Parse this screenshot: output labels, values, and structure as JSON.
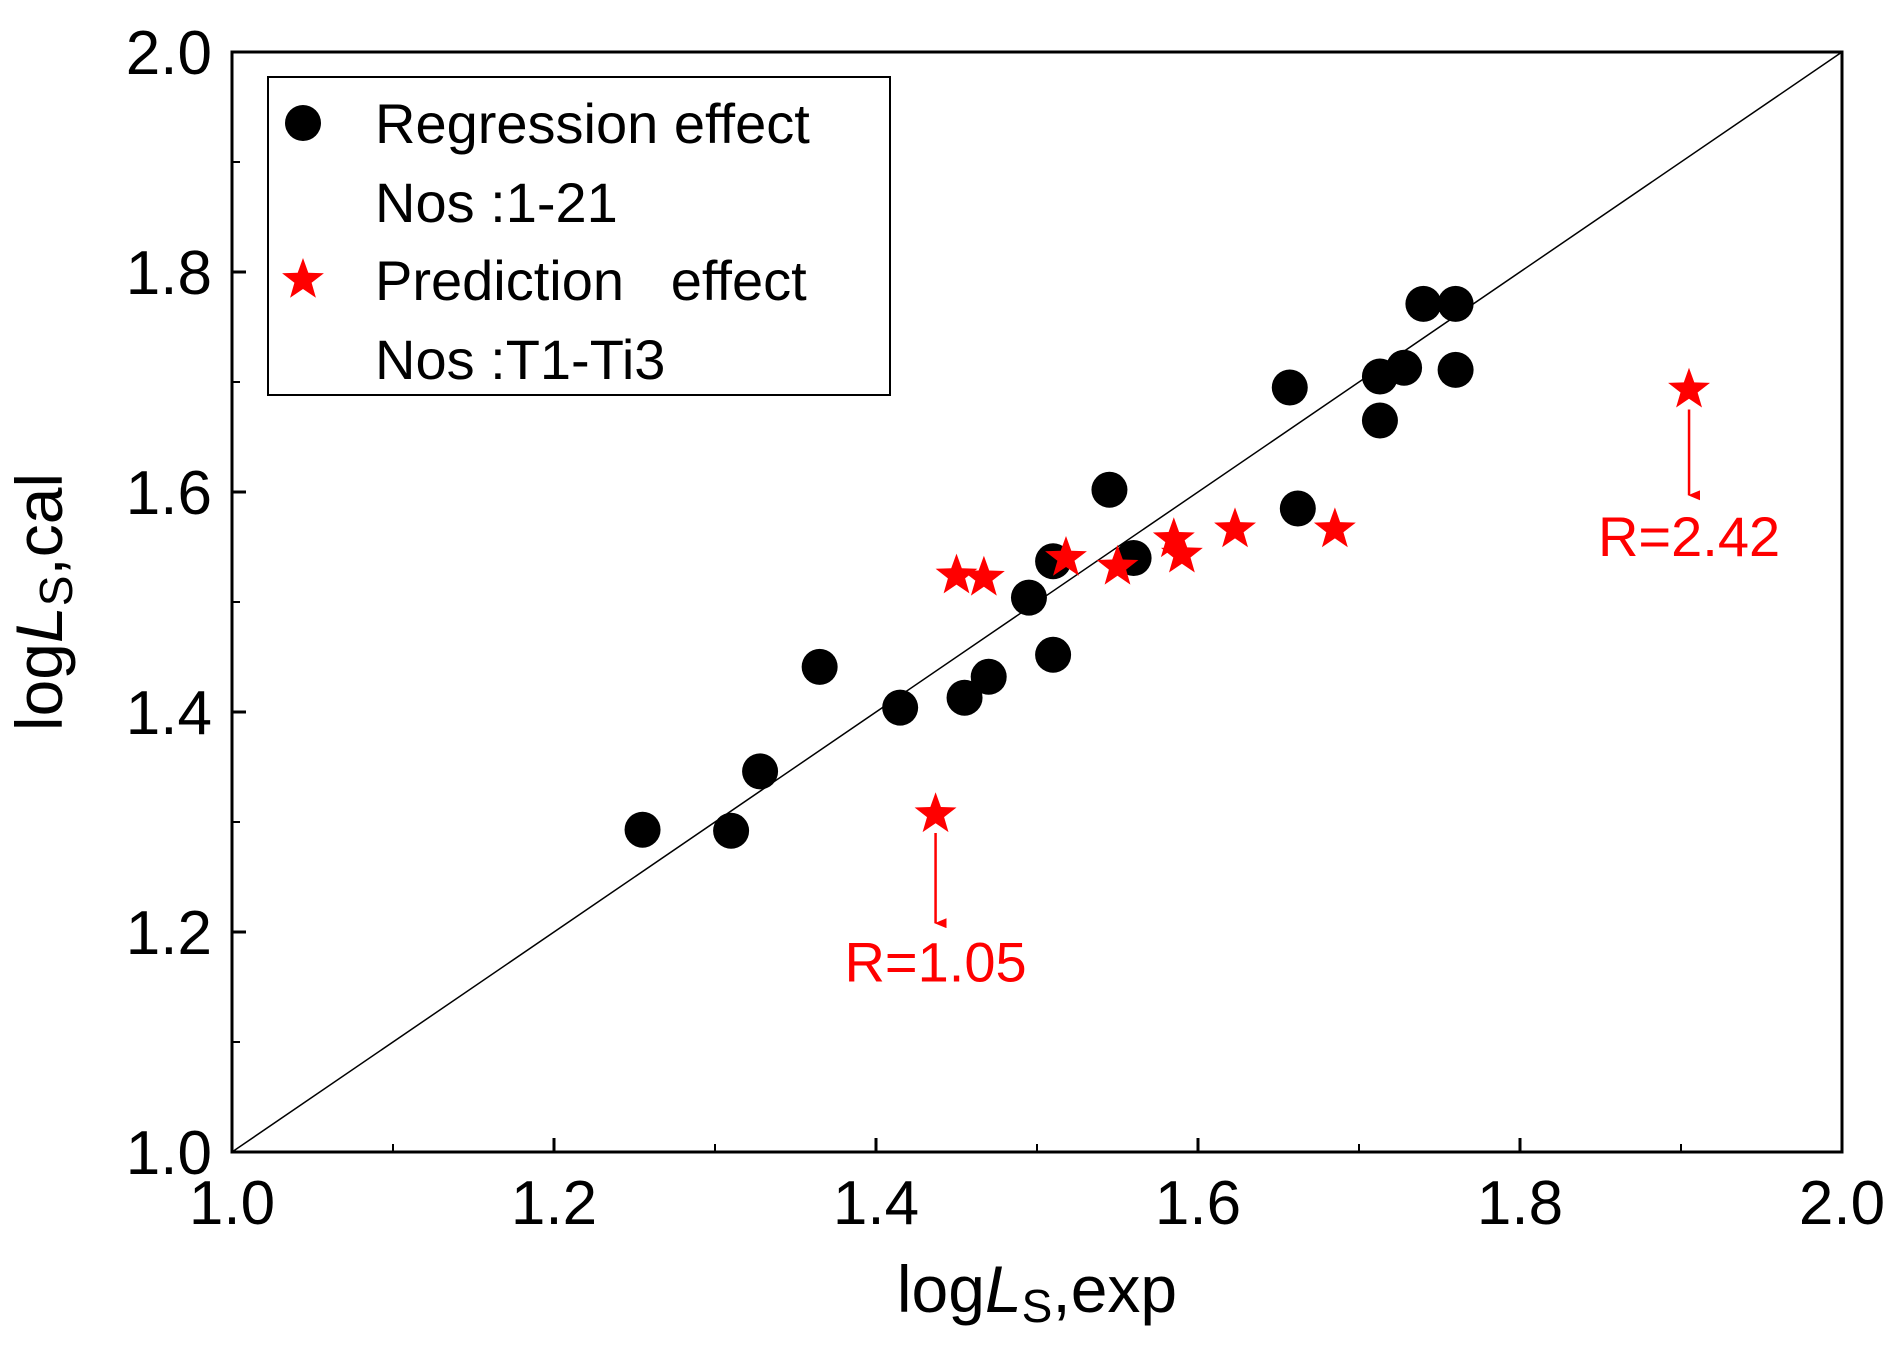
{
  "chart_data": {
    "type": "scatter",
    "xlim": [
      1.0,
      2.0
    ],
    "ylim": [
      1.0,
      2.0
    ],
    "xticks": [
      "1.0",
      "1.2",
      "1.4",
      "1.6",
      "1.8",
      "2.0"
    ],
    "yticks": [
      "1.0",
      "1.2",
      "1.4",
      "1.6",
      "1.8",
      "2.0"
    ],
    "xlabel": {
      "prefix": "log",
      "italic": "L",
      "sub": "S",
      "suffix": ",exp"
    },
    "ylabel": {
      "prefix": "log",
      "italic": "L",
      "sub": "S",
      "suffix": ",cal"
    },
    "reference_line": {
      "from": [
        1.0,
        1.0
      ],
      "to": [
        2.0,
        2.0
      ]
    },
    "series": [
      {
        "name": "Regression effect",
        "label_line2": "Nos :1-21",
        "marker": "circle",
        "color": "#000000",
        "points": [
          [
            1.255,
            1.293
          ],
          [
            1.31,
            1.292
          ],
          [
            1.328,
            1.346
          ],
          [
            1.365,
            1.441
          ],
          [
            1.415,
            1.404
          ],
          [
            1.455,
            1.413
          ],
          [
            1.47,
            1.432
          ],
          [
            1.495,
            1.504
          ],
          [
            1.51,
            1.452
          ],
          [
            1.51,
            1.537
          ],
          [
            1.545,
            1.602
          ],
          [
            1.56,
            1.54
          ],
          [
            1.657,
            1.695
          ],
          [
            1.662,
            1.585
          ],
          [
            1.713,
            1.705
          ],
          [
            1.713,
            1.665
          ],
          [
            1.728,
            1.713
          ],
          [
            1.74,
            1.771
          ],
          [
            1.76,
            1.771
          ],
          [
            1.76,
            1.711
          ]
        ]
      },
      {
        "name": "Prediction   effect",
        "label_line2": "Nos :T1-Ti3",
        "marker": "star",
        "color": "#ff0000",
        "points": [
          [
            1.437,
            1.307
          ],
          [
            1.45,
            1.524
          ],
          [
            1.467,
            1.522
          ],
          [
            1.518,
            1.54
          ],
          [
            1.55,
            1.532
          ],
          [
            1.585,
            1.557
          ],
          [
            1.59,
            1.543
          ],
          [
            1.623,
            1.566
          ],
          [
            1.685,
            1.566
          ],
          [
            1.905,
            1.693
          ]
        ]
      }
    ],
    "annotations": [
      {
        "text": "R=1.05",
        "x": 1.437,
        "y_from": 1.29,
        "y_to": 1.208,
        "label_y": 1.155,
        "color": "#ff0000"
      },
      {
        "text": "R=2.42",
        "x": 1.905,
        "y_from": 1.675,
        "y_to": 1.597,
        "label_y": 1.542,
        "color": "#ff0000"
      }
    ]
  }
}
